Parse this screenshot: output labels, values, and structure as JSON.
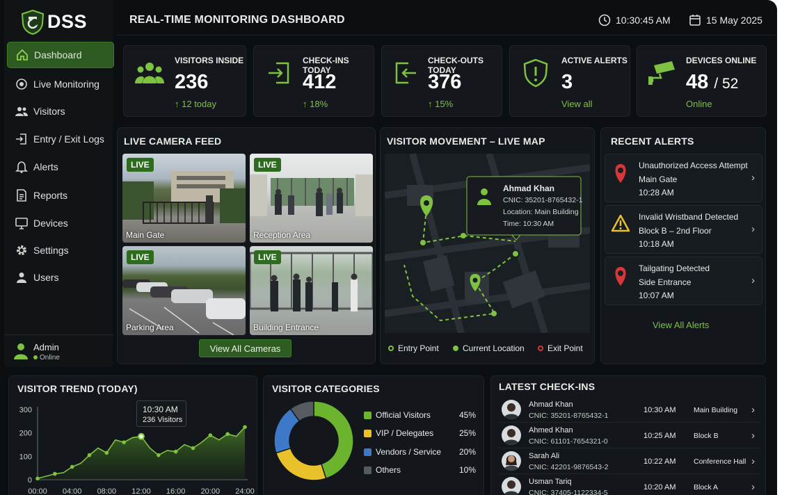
{
  "app": {
    "logo_text": "DSS",
    "title": "REAL-TIME MONITORING DASHBOARD",
    "time": "10:30:45 AM",
    "date": "15 May 2025"
  },
  "sidebar": {
    "items": [
      {
        "label": "Dashboard",
        "icon": "home-icon",
        "active": true
      },
      {
        "label": "Live Monitoring",
        "icon": "radio-target-icon"
      },
      {
        "label": "Visitors",
        "icon": "users-icon"
      },
      {
        "label": "Entry / Exit Logs",
        "icon": "log-icon"
      },
      {
        "label": "Alerts",
        "icon": "bell-icon"
      },
      {
        "label": "Reports",
        "icon": "report-icon"
      },
      {
        "label": "Devices",
        "icon": "monitor-icon"
      },
      {
        "label": "Settings",
        "icon": "gear-icon"
      },
      {
        "label": "Users",
        "icon": "user-icon"
      }
    ],
    "user": {
      "name": "Admin",
      "status": "Online"
    }
  },
  "stats": [
    {
      "title": "VISITORS INSIDE",
      "value": "236",
      "sub": "12 today",
      "icon": "visitors-group-icon"
    },
    {
      "title": "CHECK-INS TODAY",
      "value": "412",
      "sub": "18%",
      "icon": "check-in-icon"
    },
    {
      "title": "CHECK-OUTS TODAY",
      "value": "376",
      "sub": "15%",
      "icon": "check-out-icon"
    },
    {
      "title": "ACTIVE ALERTS",
      "value": "3",
      "sub": "View all",
      "icon": "shield-alert-icon"
    },
    {
      "title": "DEVICES ONLINE",
      "value": "48",
      "value_total": "/ 52",
      "sub": "Online",
      "icon": "cctv-camera-icon"
    }
  ],
  "camera_feed": {
    "title": "LIVE CAMERA FEED",
    "badge": "LIVE",
    "cameras": [
      "Main Gate",
      "Reception Area",
      "Parking Area",
      "Building Entrance"
    ],
    "button": "View All Cameras"
  },
  "map": {
    "title": "VISITOR MOVEMENT – LIVE MAP",
    "popup": {
      "name": "Ahmad Khan",
      "cnic": "CNIC: 35201-8765432-1",
      "location": "Location: Main Building",
      "time": "Time: 10:30 AM"
    },
    "legend": [
      "Entry Point",
      "Current Location",
      "Exit Point"
    ]
  },
  "alerts": {
    "title": "RECENT ALERTS",
    "items": [
      {
        "title": "Unauthorized Access Attempt",
        "place": "Main Gate",
        "time": "10:28 AM",
        "icon": "location-pin-icon"
      },
      {
        "title": "Invalid Wristband Detected",
        "place": "Block B – 2nd Floor",
        "time": "10:18 AM",
        "icon": "warning-triangle-icon"
      },
      {
        "title": "Tailgating Detected",
        "place": "Side Entrance",
        "time": "10:07 AM",
        "icon": "location-pin-icon"
      }
    ],
    "view_all": "View All Alerts"
  },
  "trend": {
    "title": "VISITOR TREND (TODAY)",
    "tooltip": {
      "time": "10:30 AM",
      "value": "236 Visitors"
    },
    "colors": {
      "line": "#7fc241"
    }
  },
  "chart_data": {
    "type": "area",
    "x": [
      "00:00",
      "01:00",
      "02:00",
      "03:00",
      "04:00",
      "05:00",
      "06:00",
      "07:00",
      "08:00",
      "09:00",
      "10:00",
      "11:00",
      "12:00",
      "13:00",
      "14:00",
      "15:00",
      "16:00",
      "17:00",
      "18:00",
      "19:00",
      "20:00",
      "21:00",
      "22:00",
      "23:00",
      "24:00"
    ],
    "values": [
      5,
      15,
      25,
      30,
      55,
      70,
      105,
      135,
      115,
      170,
      160,
      180,
      185,
      135,
      105,
      125,
      120,
      150,
      135,
      160,
      190,
      170,
      195,
      185,
      225
    ],
    "ylim": [
      0,
      300
    ],
    "yticks": [
      "300",
      "200",
      "100",
      "0"
    ],
    "xticks": [
      "00:00",
      "04:00",
      "08:00",
      "12:00",
      "16:00",
      "20:00",
      "24:00"
    ],
    "grid": false
  },
  "categories": {
    "title": "VISITOR CATEGORIES",
    "items": [
      {
        "name": "Official Visitors",
        "pct": "45%",
        "value": 45,
        "color": "#6cb32e"
      },
      {
        "name": "VIP / Delegates",
        "pct": "25%",
        "value": 25,
        "color": "#e9c12b"
      },
      {
        "name": "Vendors / Service",
        "pct": "20%",
        "value": 20,
        "color": "#3e78c8"
      },
      {
        "name": "Others",
        "pct": "10%",
        "value": 10,
        "color": "#555b60"
      }
    ]
  },
  "checkins": {
    "title": "LATEST CHECK-INS",
    "rows": [
      {
        "name": "Ahmad Khan",
        "cnic": "CNIC: 35201-8765432-1",
        "time": "10:30 AM",
        "location": "Main Building"
      },
      {
        "name": "Ahmed Khan",
        "cnic": "CNIC: 61101-7654321-0",
        "time": "10:25 AM",
        "location": "Block B"
      },
      {
        "name": "Sarah Ali",
        "cnic": "CNIC: 42201-9876543-2",
        "time": "10:22 AM",
        "location": "Conference Hall"
      },
      {
        "name": "Usman Tariq",
        "cnic": "CNIC: 37405-1122334-5",
        "time": "10:20 AM",
        "location": "Block A"
      }
    ]
  }
}
